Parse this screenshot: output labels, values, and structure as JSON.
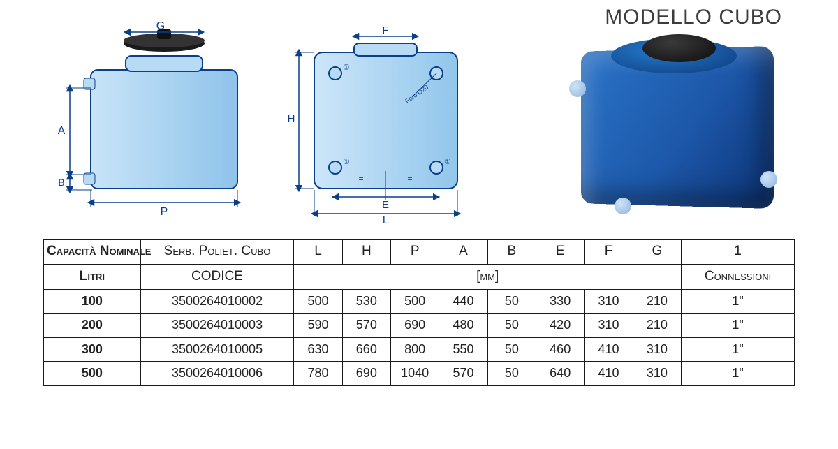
{
  "title": "MODELLO CUBO",
  "table": {
    "header_row1": [
      "Capacità Nominale",
      "Serb. Poliet. Cubo",
      "L",
      "H",
      "P",
      "A",
      "B",
      "E",
      "F",
      "G",
      "1"
    ],
    "header_row2": [
      "Litri",
      "CODICE",
      "[mm]",
      "Connessioni"
    ],
    "rows": [
      [
        "100",
        "3500264010002",
        "500",
        "530",
        "500",
        "440",
        "50",
        "330",
        "310",
        "210",
        "1\""
      ],
      [
        "200",
        "3500264010003",
        "590",
        "570",
        "690",
        "480",
        "50",
        "420",
        "310",
        "210",
        "1\""
      ],
      [
        "300",
        "3500264010005",
        "630",
        "660",
        "800",
        "550",
        "50",
        "460",
        "410",
        "310",
        "1\""
      ],
      [
        "500",
        "3500264010006",
        "780",
        "690",
        "1040",
        "570",
        "50",
        "640",
        "410",
        "310",
        "1\""
      ]
    ],
    "col_widths_class": [
      "c0",
      "c1",
      "cn",
      "cn",
      "cn",
      "cn",
      "cn",
      "cn",
      "cn",
      "cn",
      "cl"
    ],
    "border_color": "#1a1a1a",
    "header_fontsize": 19,
    "cell_fontsize": 18
  },
  "drawing_colors": {
    "fill_light": "#b7dbf5",
    "fill_grad_left": "#c8e4f8",
    "fill_grad_right": "#8fc3ea",
    "stroke": "#0a3f8a",
    "dim_stroke": "#0a3f8a",
    "lid_dark": "#111111",
    "lid_mid": "#333333"
  },
  "drawing_labels": {
    "front": {
      "G": "G",
      "A": "A",
      "B": "B",
      "P": "P"
    },
    "side": {
      "F": "F",
      "H": "H",
      "E": "E",
      "L": "L",
      "hole": "Foro Ø20",
      "one": "①",
      "eq": "="
    }
  },
  "photo_colors": {
    "blue_l": "#2a74c8",
    "blue_m": "#1d58aa",
    "blue_d": "#0c3274",
    "lid_l": "#3a3a3a",
    "lid_d": "#0c0c0c",
    "spout_l": "#cfe3f7",
    "spout_d": "#8db4dc"
  }
}
